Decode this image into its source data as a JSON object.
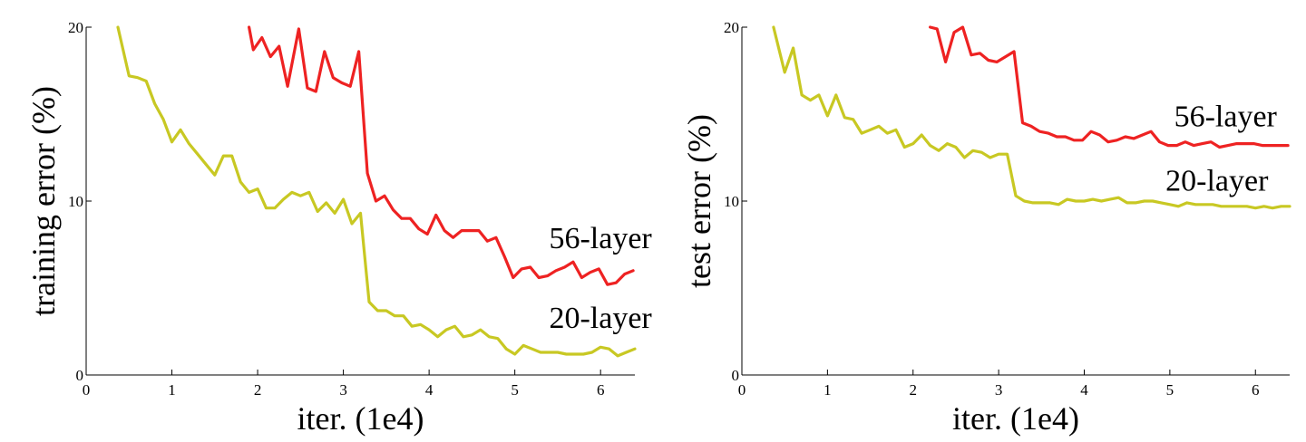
{
  "chart_data": [
    {
      "type": "line",
      "title": "",
      "xlabel": "iter. (1e4)",
      "ylabel": "training error (%)",
      "xlim": [
        0,
        6.4
      ],
      "ylim": [
        0,
        20
      ],
      "xticks": [
        0,
        1,
        2,
        3,
        4,
        5,
        6
      ],
      "yticks": [
        0,
        10,
        20
      ],
      "xtick_labels": [
        "0",
        "1",
        "2",
        "3",
        "4",
        "5",
        "6"
      ],
      "ytick_labels": [
        "0",
        "10",
        "20"
      ],
      "grid": false,
      "series": [
        {
          "name": "56-layer",
          "color": "#ee2222",
          "label_at": [
            5.4,
            7.3
          ],
          "x": [
            1.9,
            1.95,
            2.05,
            2.15,
            2.25,
            2.35,
            2.48,
            2.58,
            2.68,
            2.78,
            2.88,
            2.98,
            3.08,
            3.18,
            3.28,
            3.38,
            3.48,
            3.58,
            3.68,
            3.78,
            3.88,
            3.98,
            4.08,
            4.18,
            4.28,
            4.38,
            4.48,
            4.58,
            4.68,
            4.78,
            4.88,
            4.98,
            5.08,
            5.18,
            5.28,
            5.38,
            5.48,
            5.58,
            5.68,
            5.78,
            5.88,
            5.98,
            6.08,
            6.18,
            6.28,
            6.38
          ],
          "y": [
            20.0,
            18.7,
            19.4,
            18.3,
            18.9,
            16.6,
            19.9,
            16.5,
            16.3,
            18.6,
            17.1,
            16.8,
            16.6,
            18.6,
            11.6,
            10.0,
            10.3,
            9.5,
            9.0,
            9.0,
            8.4,
            8.1,
            9.2,
            8.3,
            7.9,
            8.3,
            8.3,
            8.3,
            7.7,
            7.9,
            6.8,
            5.6,
            6.1,
            6.2,
            5.6,
            5.7,
            6.0,
            6.2,
            6.5,
            5.6,
            5.9,
            6.1,
            5.2,
            5.3,
            5.8,
            6.0
          ]
        },
        {
          "name": "20-layer",
          "color": "#c8c823",
          "label_at": [
            5.4,
            2.7
          ],
          "x": [
            0.37,
            0.5,
            0.6,
            0.7,
            0.8,
            0.9,
            1.0,
            1.1,
            1.2,
            1.3,
            1.4,
            1.5,
            1.6,
            1.7,
            1.8,
            1.9,
            2.0,
            2.1,
            2.2,
            2.3,
            2.4,
            2.5,
            2.6,
            2.7,
            2.8,
            2.9,
            3.0,
            3.1,
            3.2,
            3.3,
            3.4,
            3.5,
            3.6,
            3.7,
            3.8,
            3.9,
            4.0,
            4.1,
            4.2,
            4.3,
            4.4,
            4.5,
            4.6,
            4.7,
            4.8,
            4.9,
            5.0,
            5.1,
            5.2,
            5.3,
            5.4,
            5.5,
            5.6,
            5.7,
            5.8,
            5.9,
            6.0,
            6.1,
            6.2,
            6.3,
            6.4
          ],
          "y": [
            20.0,
            17.2,
            17.1,
            16.9,
            15.6,
            14.7,
            13.4,
            14.1,
            13.3,
            12.7,
            12.1,
            11.5,
            12.6,
            12.6,
            11.1,
            10.5,
            10.7,
            9.6,
            9.6,
            10.1,
            10.5,
            10.3,
            10.5,
            9.4,
            9.9,
            9.3,
            10.1,
            8.7,
            9.3,
            4.2,
            3.7,
            3.7,
            3.4,
            3.4,
            2.8,
            2.9,
            2.6,
            2.2,
            2.6,
            2.8,
            2.2,
            2.3,
            2.6,
            2.2,
            2.1,
            1.5,
            1.2,
            1.7,
            1.5,
            1.3,
            1.3,
            1.3,
            1.2,
            1.2,
            1.2,
            1.3,
            1.6,
            1.5,
            1.1,
            1.3,
            1.5
          ]
        }
      ]
    },
    {
      "type": "line",
      "title": "",
      "xlabel": "iter. (1e4)",
      "ylabel": "test error (%)",
      "xlim": [
        0,
        6.4
      ],
      "ylim": [
        0,
        20
      ],
      "xticks": [
        0,
        1,
        2,
        3,
        4,
        5,
        6
      ],
      "yticks": [
        0,
        10,
        20
      ],
      "xtick_labels": [
        "0",
        "1",
        "2",
        "3",
        "4",
        "5",
        "6"
      ],
      "ytick_labels": [
        "0",
        "10",
        "20"
      ],
      "grid": false,
      "series": [
        {
          "name": "56-layer",
          "color": "#ee2222",
          "label_at": [
            5.05,
            14.3
          ],
          "x": [
            2.2,
            2.28,
            2.38,
            2.48,
            2.58,
            2.68,
            2.78,
            2.88,
            2.98,
            3.08,
            3.18,
            3.28,
            3.38,
            3.48,
            3.58,
            3.68,
            3.78,
            3.88,
            3.98,
            4.08,
            4.18,
            4.28,
            4.38,
            4.48,
            4.58,
            4.68,
            4.78,
            4.88,
            4.98,
            5.08,
            5.18,
            5.28,
            5.38,
            5.48,
            5.58,
            5.68,
            5.78,
            5.88,
            5.98,
            6.08,
            6.18,
            6.28,
            6.38
          ],
          "y": [
            20.0,
            19.9,
            18.0,
            19.7,
            20.0,
            18.4,
            18.5,
            18.1,
            18.0,
            18.3,
            18.6,
            14.5,
            14.3,
            14.0,
            13.9,
            13.7,
            13.7,
            13.5,
            13.5,
            14.0,
            13.8,
            13.4,
            13.5,
            13.7,
            13.6,
            13.8,
            14.0,
            13.4,
            13.2,
            13.2,
            13.4,
            13.2,
            13.3,
            13.4,
            13.1,
            13.2,
            13.3,
            13.3,
            13.3,
            13.2,
            13.2,
            13.2,
            13.2
          ]
        },
        {
          "name": "20-layer",
          "color": "#c8c823",
          "label_at": [
            4.95,
            10.6
          ],
          "x": [
            0.37,
            0.5,
            0.6,
            0.7,
            0.8,
            0.9,
            1.0,
            1.1,
            1.2,
            1.3,
            1.4,
            1.5,
            1.6,
            1.7,
            1.8,
            1.9,
            2.0,
            2.1,
            2.2,
            2.3,
            2.4,
            2.5,
            2.6,
            2.7,
            2.8,
            2.9,
            3.0,
            3.1,
            3.2,
            3.3,
            3.4,
            3.5,
            3.6,
            3.7,
            3.8,
            3.9,
            4.0,
            4.1,
            4.2,
            4.3,
            4.4,
            4.5,
            4.6,
            4.7,
            4.8,
            4.9,
            5.0,
            5.1,
            5.2,
            5.3,
            5.4,
            5.5,
            5.6,
            5.7,
            5.8,
            5.9,
            6.0,
            6.1,
            6.2,
            6.3,
            6.4
          ],
          "y": [
            20.0,
            17.4,
            18.8,
            16.1,
            15.8,
            16.1,
            14.9,
            16.1,
            14.8,
            14.7,
            13.9,
            14.1,
            14.3,
            13.9,
            14.1,
            13.1,
            13.3,
            13.8,
            13.2,
            12.9,
            13.3,
            13.1,
            12.5,
            12.9,
            12.8,
            12.5,
            12.7,
            12.7,
            10.3,
            10.0,
            9.9,
            9.9,
            9.9,
            9.8,
            10.1,
            10.0,
            10.0,
            10.1,
            10.0,
            10.1,
            10.2,
            9.9,
            9.9,
            10.0,
            10.0,
            9.9,
            9.8,
            9.7,
            9.9,
            9.8,
            9.8,
            9.8,
            9.7,
            9.7,
            9.7,
            9.7,
            9.6,
            9.7,
            9.6,
            9.7,
            9.7
          ]
        }
      ]
    }
  ]
}
